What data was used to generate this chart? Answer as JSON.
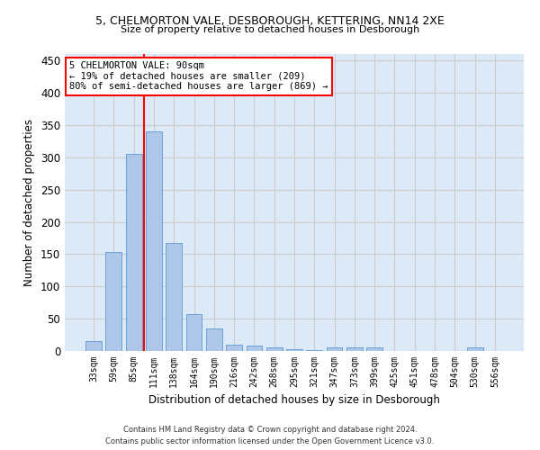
{
  "title_line1": "5, CHELMORTON VALE, DESBOROUGH, KETTERING, NN14 2XE",
  "title_line2": "Size of property relative to detached houses in Desborough",
  "xlabel": "Distribution of detached houses by size in Desborough",
  "ylabel": "Number of detached properties",
  "footer_line1": "Contains HM Land Registry data © Crown copyright and database right 2024.",
  "footer_line2": "Contains public sector information licensed under the Open Government Licence v3.0.",
  "categories": [
    "33sqm",
    "59sqm",
    "85sqm",
    "111sqm",
    "138sqm",
    "164sqm",
    "190sqm",
    "216sqm",
    "242sqm",
    "268sqm",
    "295sqm",
    "321sqm",
    "347sqm",
    "373sqm",
    "399sqm",
    "425sqm",
    "451sqm",
    "478sqm",
    "504sqm",
    "530sqm",
    "556sqm"
  ],
  "values": [
    16,
    153,
    305,
    340,
    167,
    57,
    35,
    10,
    9,
    6,
    3,
    2,
    5,
    5,
    5,
    0,
    0,
    0,
    0,
    5,
    0
  ],
  "bar_color": "#aec6e8",
  "bar_edge_color": "#5b9bd5",
  "grid_color": "#cccccc",
  "bg_color": "#dce9f7",
  "annotation_text_line1": "5 CHELMORTON VALE: 90sqm",
  "annotation_text_line2": "← 19% of detached houses are smaller (209)",
  "annotation_text_line3": "80% of semi-detached houses are larger (869) →",
  "vline_x_index": 2.5,
  "ylim": [
    0,
    460
  ],
  "yticks": [
    0,
    50,
    100,
    150,
    200,
    250,
    300,
    350,
    400,
    450
  ]
}
